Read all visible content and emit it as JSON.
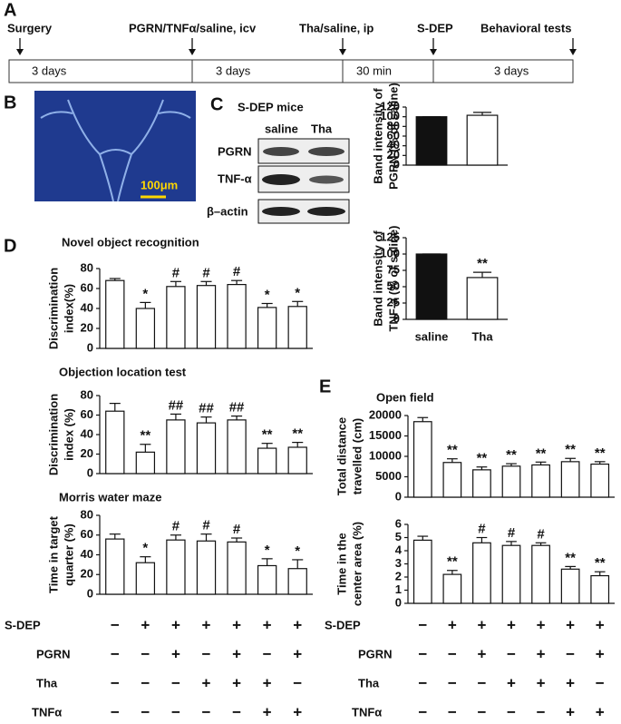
{
  "panels": [
    "A",
    "B",
    "C",
    "D",
    "E"
  ],
  "timeline": {
    "events": [
      "Surgery",
      "PGRN/TNFα/saline, icv",
      "Tha/saline, ip",
      "S-DEP",
      "Behavioral tests"
    ],
    "intervals": [
      "3 days",
      "3 days",
      "30 min",
      "3 days"
    ]
  },
  "image": {
    "scale_bar": "100μm"
  },
  "blot": {
    "title": "S-DEP mice",
    "columns": [
      "saline",
      "Tha"
    ],
    "rows": [
      "PGRN",
      "TNF-α",
      "β–actin"
    ]
  },
  "chart_data": [
    {
      "type": "bar",
      "ylabel": [
        "Band intensity of",
        "PGRN (% of saline)"
      ],
      "categories": [
        null,
        null
      ],
      "values": [
        100,
        103
      ],
      "errors": [
        0,
        6
      ],
      "colors": [
        "#111111",
        "#ffffff"
      ],
      "significance": [
        null,
        null
      ],
      "ylim": [
        0,
        120
      ],
      "yticks": [
        0,
        20,
        40,
        60,
        80,
        100,
        120
      ]
    },
    {
      "type": "bar",
      "ylabel": [
        "Band intensity of",
        "TNF-a (% of saline)"
      ],
      "categories": [
        "saline",
        "Tha"
      ],
      "values": [
        100,
        64
      ],
      "errors": [
        0,
        8
      ],
      "colors": [
        "#111111",
        "#ffffff"
      ],
      "significance": [
        null,
        "**"
      ],
      "ylim": [
        0,
        125
      ],
      "yticks": [
        0,
        25,
        50,
        75,
        100,
        125
      ]
    },
    {
      "type": "bar",
      "title": "Novel object recognition",
      "ylabel": [
        "Discrimination",
        "index(%)"
      ],
      "categories": [
        null,
        null,
        null,
        null,
        null,
        null,
        null
      ],
      "values": [
        68,
        40,
        62,
        63,
        64,
        41,
        42
      ],
      "errors": [
        2,
        6,
        5,
        4,
        4,
        4,
        5
      ],
      "color": "#ffffff",
      "significance": [
        null,
        "*",
        "#",
        "#",
        "#",
        "*",
        "*"
      ],
      "ylim": [
        0,
        80
      ],
      "yticks": [
        0,
        20,
        40,
        60,
        80
      ]
    },
    {
      "type": "bar",
      "title": "Objection location test",
      "ylabel": [
        "Discrimination",
        "index (%)"
      ],
      "categories": [
        null,
        null,
        null,
        null,
        null,
        null,
        null
      ],
      "values": [
        64,
        22,
        55,
        52,
        55,
        26,
        27
      ],
      "errors": [
        8,
        8,
        6,
        6,
        4,
        5,
        5
      ],
      "color": "#ffffff",
      "significance": [
        null,
        "**",
        "##",
        "##",
        "##",
        "**",
        "**"
      ],
      "ylim": [
        0,
        80
      ],
      "yticks": [
        0,
        20,
        40,
        60,
        80
      ]
    },
    {
      "type": "bar",
      "title": "Morris water maze",
      "ylabel": [
        "Time in target",
        "quarter (%)"
      ],
      "categories": [
        null,
        null,
        null,
        null,
        null,
        null,
        null
      ],
      "values": [
        56,
        32,
        55,
        54,
        53,
        29,
        26
      ],
      "errors": [
        5,
        6,
        5,
        7,
        4,
        7,
        9
      ],
      "color": "#ffffff",
      "significance": [
        null,
        "*",
        "#",
        "#",
        "#",
        "*",
        "*"
      ],
      "ylim": [
        0,
        80
      ],
      "yticks": [
        0,
        20,
        40,
        60,
        80
      ]
    },
    {
      "type": "bar",
      "title": "Open field",
      "ylabel": [
        "Total distance",
        "travelled (cm)"
      ],
      "categories": [
        null,
        null,
        null,
        null,
        null,
        null,
        null
      ],
      "values": [
        18500,
        8500,
        6700,
        7600,
        7900,
        8700,
        8100
      ],
      "errors": [
        1000,
        900,
        700,
        600,
        700,
        800,
        600
      ],
      "color": "#ffffff",
      "significance": [
        null,
        "**",
        "**",
        "**",
        "**",
        "**",
        "**"
      ],
      "ylim": [
        0,
        20000
      ],
      "yticks": [
        0,
        5000,
        10000,
        15000,
        20000
      ]
    },
    {
      "type": "bar",
      "ylabel": [
        "Time in the",
        "center area (%)"
      ],
      "categories": [
        null,
        null,
        null,
        null,
        null,
        null,
        null
      ],
      "values": [
        4.8,
        2.2,
        4.6,
        4.4,
        4.4,
        2.6,
        2.1
      ],
      "errors": [
        0.3,
        0.3,
        0.4,
        0.3,
        0.2,
        0.2,
        0.3
      ],
      "color": "#ffffff",
      "significance": [
        null,
        "**",
        "#",
        "#",
        "#",
        "**",
        "**"
      ],
      "ylim": [
        0,
        6
      ],
      "yticks": [
        0,
        1,
        2,
        3,
        4,
        5,
        6
      ]
    }
  ],
  "treatments": [
    {
      "rows": [
        {
          "label": "S-DEP",
          "signs": [
            "−",
            "+",
            "+",
            "+",
            "+",
            "+",
            "+"
          ]
        },
        {
          "label": "PGRN",
          "signs": [
            "−",
            "−",
            "+",
            "−",
            "+",
            "−",
            "+"
          ]
        },
        {
          "label": "Tha",
          "signs": [
            "−",
            "−",
            "−",
            "+",
            "+",
            "+",
            "−"
          ]
        },
        {
          "label": "TNFα",
          "signs": [
            "−",
            "−",
            "−",
            "−",
            "−",
            "+",
            "+"
          ]
        }
      ]
    },
    {
      "rows": [
        {
          "label": "S-DEP",
          "signs": [
            "−",
            "+",
            "+",
            "+",
            "+",
            "+",
            "+"
          ]
        },
        {
          "label": "PGRN",
          "signs": [
            "−",
            "−",
            "+",
            "−",
            "+",
            "−",
            "+"
          ]
        },
        {
          "label": "Tha",
          "signs": [
            "−",
            "−",
            "−",
            "+",
            "+",
            "+",
            "−"
          ]
        },
        {
          "label": "TNFα",
          "signs": [
            "−",
            "−",
            "−",
            "−",
            "−",
            "+",
            "+"
          ]
        }
      ]
    }
  ]
}
